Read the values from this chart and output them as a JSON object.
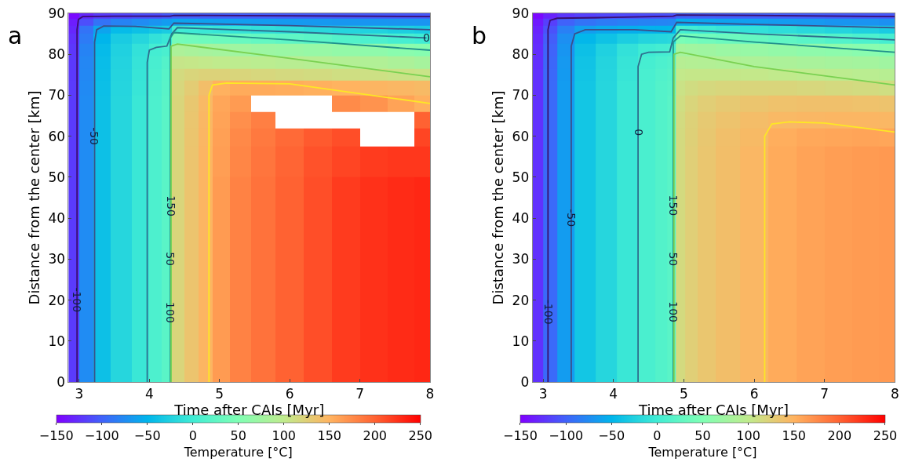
{
  "chart_data": [
    {
      "type": "heatmap",
      "title": "a",
      "xlabel": "Time after CAIs [Myr]",
      "ylabel": "Distance from the center [km]",
      "clabel": "Temperature [°C]",
      "xlim": [
        2.85,
        8
      ],
      "xticks": [
        3,
        4,
        5,
        6,
        7,
        8
      ],
      "ylim": [
        0,
        90
      ],
      "yticks": [
        0,
        10,
        20,
        30,
        40,
        50,
        60,
        70,
        80,
        90
      ],
      "clim": [
        -150,
        250
      ],
      "cticks": [
        -150,
        -100,
        -50,
        0,
        50,
        100,
        150,
        200,
        250
      ],
      "colors": [
        "#8000ff",
        "#4062fa",
        "#00b5eb",
        "#40ecd4",
        "#80ffb4",
        "#c0eb8d",
        "#ffb360",
        "#ff6232",
        "#ff0000"
      ],
      "x": [
        2.9,
        3.1,
        3.3,
        3.6,
        3.9,
        4.1,
        4.25,
        4.4,
        4.6,
        4.8,
        5.0,
        5.3,
        5.6,
        6.0,
        6.4,
        6.8,
        7.2,
        7.6,
        7.95
      ],
      "y": [
        89.5,
        88,
        86,
        84,
        81,
        78,
        75,
        72,
        68,
        64,
        60,
        55,
        45,
        30,
        15,
        3
      ],
      "cells": [
        [
          -145,
          -130,
          -120,
          -115,
          -110,
          -110,
          -105,
          -100,
          -100,
          -101,
          -101,
          -102,
          -102,
          -103,
          -103,
          -104,
          -104,
          -105,
          -105
        ],
        [
          -135,
          -110,
          -90,
          -80,
          -75,
          -70,
          -65,
          -60,
          -61,
          -62,
          -63,
          -64,
          -65,
          -66,
          -67,
          -68,
          -69,
          -70,
          -70
        ],
        [
          -130,
          -90,
          -60,
          -45,
          -40,
          -35,
          -30,
          0,
          -2,
          -4,
          -6,
          -8,
          -12,
          -15,
          -18,
          -21,
          -24,
          -27,
          -30
        ],
        [
          -125,
          -85,
          -50,
          -30,
          -20,
          -10,
          -5,
          40,
          38,
          36,
          34,
          32,
          28,
          24,
          20,
          15,
          10,
          5,
          0
        ],
        [
          -122,
          -80,
          -45,
          -25,
          -10,
          3,
          8,
          85,
          82,
          80,
          78,
          75,
          72,
          70,
          68,
          65,
          62,
          58,
          55
        ],
        [
          -121,
          -78,
          -43,
          -23,
          -8,
          6,
          16,
          105,
          104,
          102,
          100,
          98,
          96,
          94,
          92,
          90,
          88,
          84,
          80
        ],
        [
          -121,
          -77,
          -42,
          -22,
          -7,
          8,
          18,
          115,
          120,
          122,
          122,
          120,
          118,
          116,
          114,
          112,
          110,
          108,
          106
        ],
        [
          -120,
          -76,
          -41,
          -21,
          -6,
          9,
          19,
          118,
          128,
          140,
          151,
          155,
          155,
          154,
          152,
          150,
          148,
          146,
          144
        ],
        [
          -120,
          -75,
          -40,
          -20,
          -5,
          10,
          20,
          120,
          132,
          145,
          158,
          165,
          null,
          null,
          null,
          175,
          170,
          160,
          152
        ],
        [
          -120,
          -75,
          -40,
          -20,
          -5,
          10,
          20,
          120,
          133,
          146,
          160,
          172,
          182,
          null,
          null,
          null,
          null,
          null,
          200
        ],
        [
          -120,
          -75,
          -40,
          -20,
          -5,
          10,
          20,
          120,
          134,
          147,
          162,
          176,
          186,
          195,
          204,
          210,
          null,
          null,
          215
        ],
        [
          -120,
          -75,
          -40,
          -20,
          -5,
          10,
          20,
          120,
          135,
          148,
          163,
          178,
          188,
          198,
          208,
          215,
          220,
          222,
          222
        ],
        [
          -120,
          -75,
          -40,
          -20,
          -5,
          10,
          20,
          120,
          135,
          148,
          165,
          180,
          190,
          200,
          210,
          220,
          225,
          228,
          230
        ],
        [
          -120,
          -75,
          -40,
          -20,
          -5,
          10,
          20,
          120,
          135,
          148,
          165,
          180,
          190,
          200,
          210,
          220,
          225,
          228,
          230
        ],
        [
          -120,
          -75,
          -40,
          -20,
          -5,
          10,
          20,
          120,
          135,
          148,
          165,
          180,
          190,
          200,
          210,
          220,
          225,
          228,
          230
        ],
        [
          -120,
          -75,
          -40,
          -20,
          -5,
          10,
          20,
          120,
          135,
          148,
          165,
          180,
          190,
          200,
          210,
          220,
          225,
          228,
          230
        ]
      ],
      "series": [
        {
          "type": "line",
          "color": "#3b0f70",
          "x": [
            2.97,
            2.97,
            2.99,
            3.05,
            3.5,
            4.3,
            4.35,
            6,
            8
          ],
          "values": [
            0,
            86,
            88.5,
            89.2,
            89.3,
            89.3,
            89.5,
            89.4,
            89.2
          ]
        },
        {
          "type": "line",
          "color": "#3b4f8a",
          "x": [
            3.22,
            3.22,
            3.25,
            3.35,
            3.8,
            4.28,
            4.35,
            6,
            8
          ],
          "values": [
            0,
            83,
            86,
            86.9,
            86.8,
            86.2,
            87.6,
            87,
            86
          ]
        },
        {
          "type": "line",
          "color": "#2e6f8e",
          "x": [
            3.97,
            3.97,
            4.0,
            4.1,
            4.25,
            4.32,
            4.4,
            6,
            7.95
          ],
          "values": [
            0,
            78,
            81,
            81.7,
            82,
            85,
            86.5,
            85.5,
            84
          ]
        },
        {
          "type": "line",
          "color": "#21908c",
          "x": [
            4.3,
            4.3,
            4.35,
            6,
            8
          ],
          "values": [
            0,
            84,
            85.3,
            83.5,
            81
          ]
        },
        {
          "type": "line",
          "color": "#7ad151",
          "x": [
            4.31,
            4.31,
            4.4,
            6,
            8
          ],
          "values": [
            0,
            82,
            82.5,
            79,
            74.5
          ]
        },
        {
          "type": "line",
          "color": "#fde725",
          "x": [
            4.85,
            4.85,
            4.9,
            5.1,
            6,
            8
          ],
          "values": [
            0,
            70,
            72.5,
            73,
            72.8,
            68
          ]
        }
      ],
      "annotations": [
        {
          "text": "-100",
          "x": 2.97,
          "y": 20
        },
        {
          "text": "-50",
          "x": 3.22,
          "y": 60
        },
        {
          "text": "0",
          "x": 7.95,
          "y": 84
        },
        {
          "text": "150",
          "x": 4.3,
          "y": 43
        },
        {
          "text": "50",
          "x": 4.3,
          "y": 30
        },
        {
          "text": "100",
          "x": 4.3,
          "y": 17
        }
      ]
    },
    {
      "type": "heatmap",
      "title": "b",
      "xlabel": "Time after CAIs [Myr]",
      "ylabel": "Distance from the center [km]",
      "clabel": "Temperature [°C]",
      "xlim": [
        2.85,
        8
      ],
      "xticks": [
        3,
        4,
        5,
        6,
        7,
        8
      ],
      "ylim": [
        0,
        90
      ],
      "yticks": [
        0,
        10,
        20,
        30,
        40,
        50,
        60,
        70,
        80,
        90
      ],
      "clim": [
        -150,
        250
      ],
      "cticks": [
        -150,
        -100,
        -50,
        0,
        50,
        100,
        150,
        200,
        250
      ],
      "colors": [
        "#8000ff",
        "#4062fa",
        "#00b5eb",
        "#40ecd4",
        "#80ffb4",
        "#c0eb8d",
        "#ffb360",
        "#ff6232",
        "#ff0000"
      ],
      "x": [
        2.9,
        3.1,
        3.3,
        3.6,
        3.9,
        4.2,
        4.5,
        4.7,
        4.82,
        4.95,
        5.1,
        5.3,
        5.6,
        6.0,
        6.4,
        6.8,
        7.2,
        7.6,
        7.95
      ],
      "y": [
        89.5,
        88,
        86,
        84,
        81,
        78,
        75,
        72,
        68,
        64,
        60,
        55,
        45,
        30,
        15,
        3
      ],
      "cells": [
        [
          -146,
          -132,
          -122,
          -117,
          -114,
          -112,
          -110,
          -109,
          -108,
          -98,
          -99,
          -100,
          -101,
          -101,
          -102,
          -102,
          -103,
          -104,
          -105
        ],
        [
          -137,
          -118,
          -100,
          -90,
          -85,
          -82,
          -80,
          -79,
          -78,
          -55,
          -57,
          -59,
          -61,
          -63,
          -65,
          -67,
          -69,
          -70,
          -72
        ],
        [
          -132,
          -108,
          -82,
          -64,
          -58,
          -54,
          -52,
          -51,
          -50,
          5,
          2,
          -2,
          -6,
          -10,
          -14,
          -18,
          -22,
          -26,
          -30
        ],
        [
          -129,
          -102,
          -73,
          -48,
          -38,
          -28,
          -22,
          -20,
          -18,
          45,
          42,
          38,
          34,
          30,
          25,
          20,
          15,
          10,
          5
        ],
        [
          -127,
          -99,
          -69,
          -40,
          -25,
          -10,
          -1,
          3,
          6,
          78,
          76,
          74,
          71,
          68,
          65,
          62,
          60,
          57,
          55
        ],
        [
          -126,
          -97,
          -67,
          -37,
          -22,
          -7,
          5,
          10,
          14,
          92,
          91,
          90,
          88,
          86,
          84,
          82,
          80,
          78,
          75
        ],
        [
          -125,
          -96,
          -66,
          -36,
          -21,
          -6,
          7,
          13,
          17,
          102,
          104,
          104,
          104,
          103,
          101,
          99,
          97,
          95,
          93
        ],
        [
          -125,
          -95,
          -65,
          -35,
          -20,
          -5,
          8,
          15,
          19,
          108,
          113,
          117,
          119,
          120,
          120,
          118,
          116,
          114,
          112
        ],
        [
          -125,
          -95,
          -65,
          -35,
          -20,
          -5,
          8,
          15,
          20,
          112,
          120,
          126,
          130,
          134,
          137,
          138,
          138,
          137,
          136
        ],
        [
          -125,
          -95,
          -65,
          -35,
          -20,
          -5,
          8,
          15,
          20,
          114,
          123,
          130,
          136,
          141,
          145,
          146,
          147,
          147,
          146
        ],
        [
          -125,
          -95,
          -65,
          -35,
          -20,
          -5,
          8,
          15,
          20,
          115,
          124,
          132,
          139,
          144,
          153,
          157,
          158,
          159,
          158
        ],
        [
          -125,
          -95,
          -65,
          -35,
          -20,
          -5,
          8,
          15,
          20,
          115,
          125,
          133,
          140,
          146,
          155,
          160,
          163,
          165,
          166
        ],
        [
          -125,
          -95,
          -65,
          -35,
          -20,
          -5,
          8,
          15,
          20,
          115,
          125,
          133,
          140,
          146,
          155,
          160,
          163,
          165,
          166
        ],
        [
          -125,
          -95,
          -65,
          -35,
          -20,
          -5,
          8,
          15,
          20,
          115,
          125,
          133,
          140,
          146,
          155,
          160,
          163,
          165,
          166
        ],
        [
          -125,
          -95,
          -65,
          -35,
          -20,
          -5,
          8,
          15,
          20,
          115,
          125,
          133,
          140,
          146,
          155,
          160,
          163,
          165,
          166
        ],
        [
          -125,
          -95,
          -65,
          -35,
          -20,
          -5,
          8,
          15,
          20,
          115,
          125,
          133,
          140,
          146,
          155,
          160,
          163,
          165,
          166
        ]
      ],
      "series": [
        {
          "type": "line",
          "color": "#3b0f70",
          "x": [
            3.07,
            3.07,
            3.1,
            3.2,
            4.0,
            4.85,
            4.9,
            6,
            8
          ],
          "values": [
            0,
            86,
            88.3,
            88.8,
            89,
            89.3,
            89.6,
            89.5,
            89.2
          ]
        },
        {
          "type": "line",
          "color": "#3b4f8a",
          "x": [
            3.4,
            3.4,
            3.45,
            3.6,
            4.3,
            4.82,
            4.9,
            6,
            8
          ],
          "values": [
            0,
            82,
            85,
            86,
            86,
            85.5,
            87.8,
            87.3,
            86.5
          ]
        },
        {
          "type": "line",
          "color": "#2e6f8e",
          "x": [
            4.35,
            4.35,
            4.4,
            4.5,
            4.8,
            4.85,
            4.95,
            6,
            8
          ],
          "values": [
            0,
            77,
            80,
            80.5,
            80.6,
            84,
            86,
            85,
            83.5
          ]
        },
        {
          "type": "line",
          "color": "#21908c",
          "x": [
            4.85,
            4.85,
            4.95,
            6,
            8
          ],
          "values": [
            0,
            83,
            84.5,
            83,
            80.5
          ]
        },
        {
          "type": "line",
          "color": "#7ad151",
          "x": [
            4.86,
            4.86,
            4.95,
            6,
            8
          ],
          "values": [
            0,
            80,
            80.5,
            77,
            72.5
          ]
        },
        {
          "type": "line",
          "color": "#fde725",
          "x": [
            6.15,
            6.15,
            6.25,
            6.5,
            7,
            8
          ],
          "values": [
            0,
            60,
            63,
            63.5,
            63.2,
            61
          ]
        }
      ],
      "annotations": [
        {
          "text": "-100",
          "x": 3.07,
          "y": 17
        },
        {
          "text": "-50",
          "x": 3.4,
          "y": 40
        },
        {
          "text": "0",
          "x": 4.35,
          "y": 61
        },
        {
          "text": "150",
          "x": 4.85,
          "y": 43
        },
        {
          "text": "50",
          "x": 4.85,
          "y": 30
        },
        {
          "text": "100",
          "x": 4.85,
          "y": 17
        }
      ]
    }
  ]
}
